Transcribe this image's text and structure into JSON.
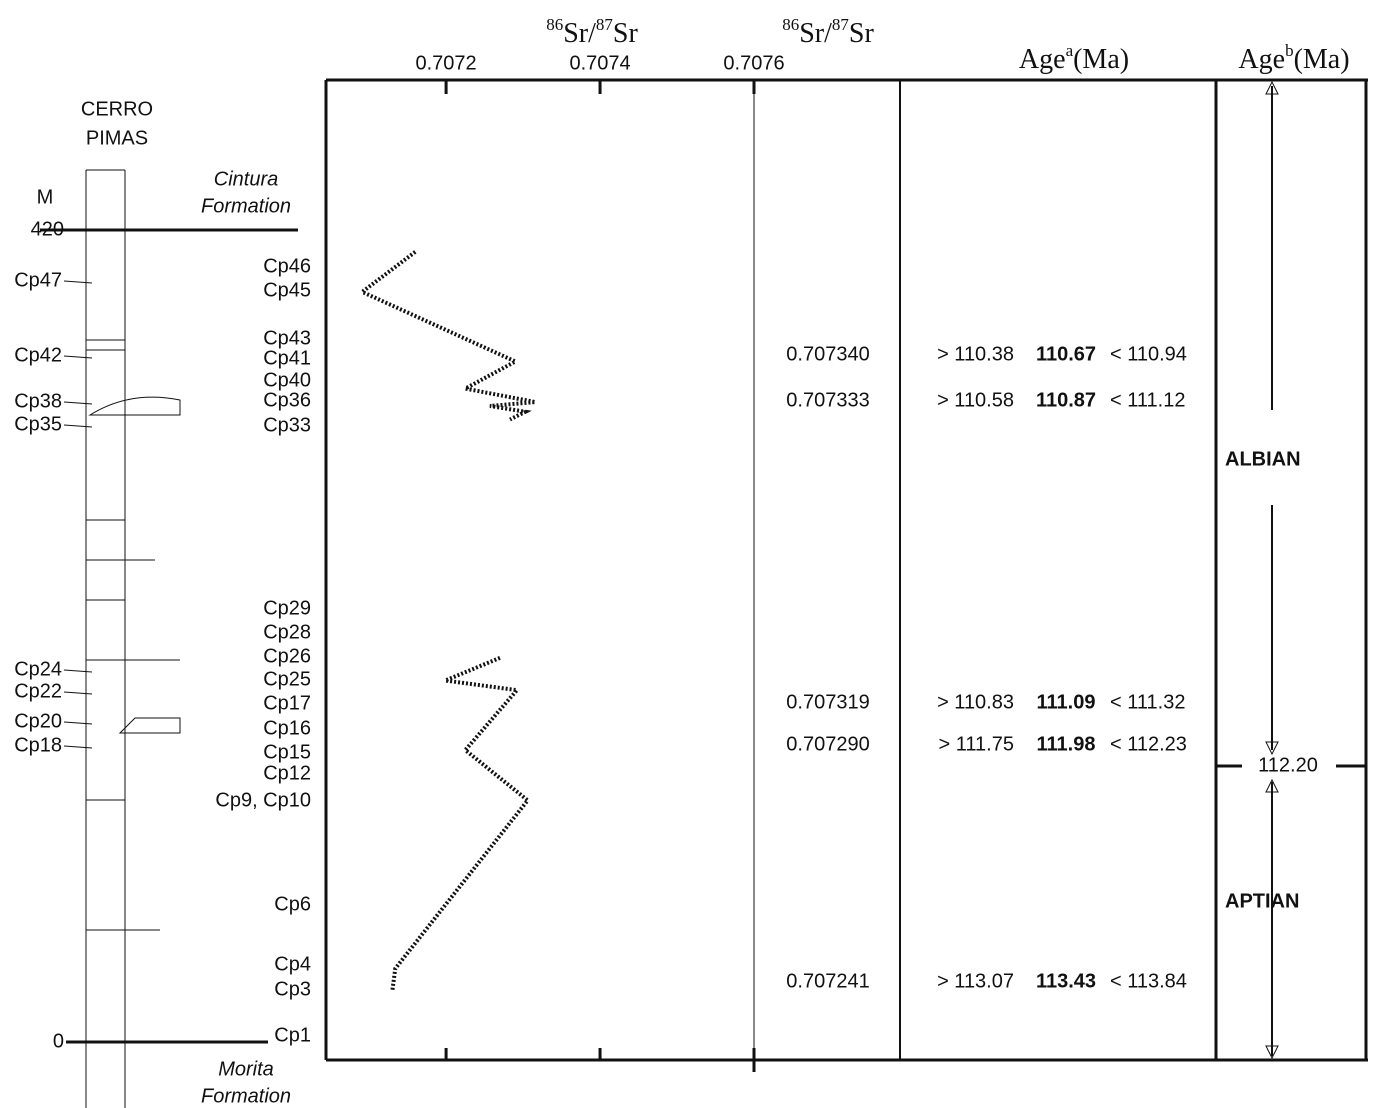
{
  "chart_data": {
    "type": "line",
    "column_title": [
      "CERRO",
      "PIMAS"
    ],
    "depth_unit": "M",
    "yticks": [
      0,
      420
    ],
    "ylim": [
      -9.3,
      497.6
    ],
    "xlim": [
      0.707044,
      0.7076
    ],
    "xticks": [
      0.7072,
      0.7074,
      0.7076
    ],
    "formations": {
      "top": [
        "Cintura",
        "Formation"
      ],
      "bottom": [
        "Morita",
        "Formation"
      ]
    },
    "sr_header": {
      "sup1": "86",
      "a": "Sr/",
      "sup2": "87",
      "b": "Sr"
    },
    "age_a_header": {
      "main": "Age",
      "sup": "a",
      "unit": "(Ma)"
    },
    "age_b_header": {
      "main": "Age",
      "sup": "b",
      "unit": "(Ma)"
    },
    "values": [
      0.70716,
      0.707091,
      0.70729,
      0.707225,
      0.707316,
      0.707257,
      0.707303,
      0.707283,
      null,
      0.70727,
      0.707199,
      0.707292,
      0.707225,
      0.707306,
      0.707134,
      0.70713
    ],
    "depth": [
      408.7,
      388,
      352,
      338,
      331,
      329,
      326,
      322,
      null,
      198.7,
      187,
      182,
      151,
      125,
      38,
      26
    ],
    "samples_left": [
      "Cp47",
      "Cp42",
      "Cp38",
      "Cp35",
      "Cp24",
      "Cp22",
      "Cp20",
      "Cp18"
    ],
    "samples_right": [
      "Cp46",
      "Cp45",
      "Cp43",
      "Cp41",
      "Cp40",
      "Cp36",
      "Cp33",
      "Cp29",
      "Cp28",
      "Cp26",
      "Cp25",
      "Cp17",
      "Cp16",
      "Cp15",
      "Cp12",
      "Cp9, Cp10",
      "Cp6",
      "Cp4",
      "Cp3",
      "Cp1"
    ],
    "table": [
      {
        "sr": "0.707340",
        "min": "> 110.38",
        "age": "110.67",
        "max": "< 110.94"
      },
      {
        "sr": "0.707333",
        "min": "> 110.58",
        "age": "110.87",
        "max": "< 111.12"
      },
      {
        "sr": "0.707319",
        "min": "> 110.83",
        "age": "111.09",
        "max": "< 111.32"
      },
      {
        "sr": "0.707290",
        "min": "> 111.75",
        "age": "111.98",
        "max": "< 112.23"
      },
      {
        "sr": "0.707241",
        "min": "> 113.07",
        "age": "113.43",
        "max": "< 113.84"
      }
    ],
    "stages": [
      "ALBIAN",
      "APTIAN"
    ],
    "boundary": "112.20"
  }
}
